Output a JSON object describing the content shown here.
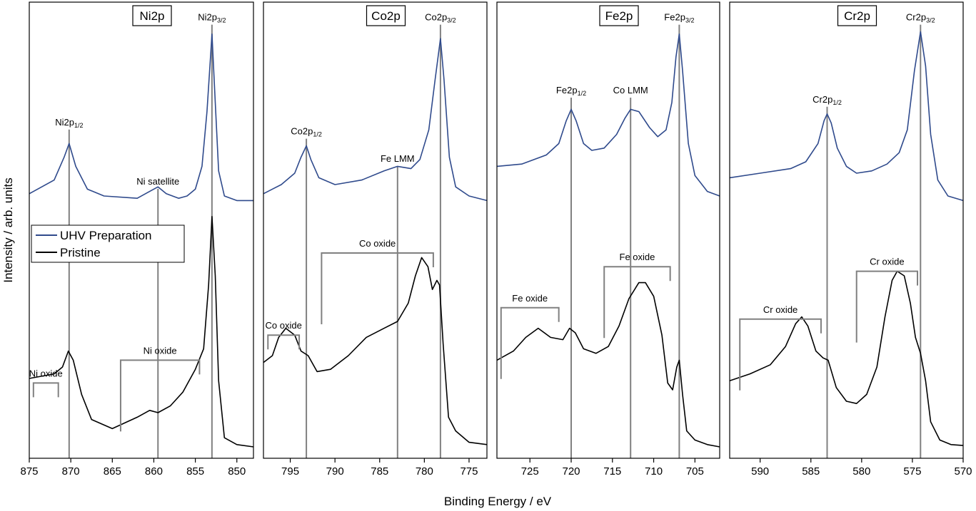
{
  "figure": {
    "xlabel": "Binding Energy / eV",
    "ylabel": "Intensity / arb. units"
  },
  "legend": {
    "placement": "left-middle",
    "entries": [
      {
        "label": "UHV Preparation",
        "color": "#2f4a8c"
      },
      {
        "label": "Pristine",
        "color": "#000000"
      }
    ]
  },
  "colors": {
    "uhv": "#2f4a8c",
    "pristine": "#000000",
    "guide": "#808080"
  },
  "chart_data": [
    {
      "type": "line",
      "title": "Ni2p",
      "xlim": [
        875,
        848
      ],
      "xticks": [
        875,
        870,
        865,
        860,
        855,
        850
      ],
      "peaks": [
        {
          "x": 870.2,
          "label": "Ni2p",
          "sub": "1/2",
          "label_y": 0.73
        },
        {
          "x": 859.5,
          "label": "Ni satellite",
          "sub": "",
          "label_y": 0.6
        },
        {
          "x": 853.0,
          "label": "Ni2p",
          "sub": "3/2",
          "label_y": 0.96
        }
      ],
      "brackets": [
        {
          "x1": 874.5,
          "x2": 871.5,
          "y": 0.165,
          "label": "Ni oxide"
        },
        {
          "x1": 864.0,
          "x2": 854.5,
          "y": 0.215,
          "label": "Ni oxide"
        }
      ],
      "series": [
        {
          "name": "UHV Preparation",
          "points": [
            [
              875,
              0.58
            ],
            [
              872,
              0.61
            ],
            [
              870.8,
              0.66
            ],
            [
              870.2,
              0.69
            ],
            [
              869.4,
              0.64
            ],
            [
              868,
              0.59
            ],
            [
              866,
              0.575
            ],
            [
              862,
              0.57
            ],
            [
              860.5,
              0.585
            ],
            [
              859.5,
              0.595
            ],
            [
              858.5,
              0.58
            ],
            [
              857,
              0.57
            ],
            [
              856,
              0.575
            ],
            [
              855,
              0.59
            ],
            [
              854.2,
              0.64
            ],
            [
              853.6,
              0.76
            ],
            [
              853.0,
              0.93
            ],
            [
              852.6,
              0.78
            ],
            [
              852.2,
              0.63
            ],
            [
              851.5,
              0.575
            ],
            [
              850,
              0.565
            ],
            [
              848,
              0.565
            ]
          ]
        },
        {
          "name": "Pristine",
          "points": [
            [
              875,
              0.175
            ],
            [
              872,
              0.185
            ],
            [
              871,
              0.2
            ],
            [
              870.3,
              0.235
            ],
            [
              869.7,
              0.215
            ],
            [
              868.7,
              0.14
            ],
            [
              867.5,
              0.085
            ],
            [
              865,
              0.065
            ],
            [
              862,
              0.09
            ],
            [
              860.5,
              0.105
            ],
            [
              859.5,
              0.1
            ],
            [
              858,
              0.115
            ],
            [
              856.5,
              0.145
            ],
            [
              855,
              0.195
            ],
            [
              854,
              0.24
            ],
            [
              853.4,
              0.38
            ],
            [
              853.0,
              0.53
            ],
            [
              852.6,
              0.4
            ],
            [
              852.2,
              0.17
            ],
            [
              851.5,
              0.045
            ],
            [
              850,
              0.03
            ],
            [
              848,
              0.025
            ]
          ]
        }
      ]
    },
    {
      "type": "line",
      "title": "Co2p",
      "xlim": [
        798,
        773
      ],
      "xticks": [
        795,
        790,
        785,
        780,
        775
      ],
      "peaks": [
        {
          "x": 793.2,
          "label": "Co2p",
          "sub": "1/2",
          "label_y": 0.71
        },
        {
          "x": 783.0,
          "label": "Fe LMM",
          "sub": "",
          "label_y": 0.65
        },
        {
          "x": 778.2,
          "label": "Co2p",
          "sub": "3/2",
          "label_y": 0.96
        }
      ],
      "brackets": [
        {
          "x1": 797.5,
          "x2": 794.0,
          "y": 0.27,
          "label": "Co oxide"
        },
        {
          "x1": 791.5,
          "x2": 779.0,
          "y": 0.45,
          "label": "Co oxide"
        }
      ],
      "series": [
        {
          "name": "UHV Preparation",
          "points": [
            [
              798,
              0.58
            ],
            [
              796,
              0.6
            ],
            [
              794.5,
              0.625
            ],
            [
              793.8,
              0.66
            ],
            [
              793.2,
              0.685
            ],
            [
              792.7,
              0.655
            ],
            [
              791.8,
              0.615
            ],
            [
              790,
              0.6
            ],
            [
              787,
              0.61
            ],
            [
              784.5,
              0.63
            ],
            [
              783.0,
              0.64
            ],
            [
              781.5,
              0.635
            ],
            [
              780.5,
              0.655
            ],
            [
              779.5,
              0.72
            ],
            [
              778.8,
              0.83
            ],
            [
              778.2,
              0.92
            ],
            [
              777.8,
              0.83
            ],
            [
              777.2,
              0.66
            ],
            [
              776.5,
              0.595
            ],
            [
              775,
              0.575
            ],
            [
              773,
              0.565
            ]
          ]
        },
        {
          "name": "Pristine",
          "points": [
            [
              798,
              0.21
            ],
            [
              797,
              0.225
            ],
            [
              796.3,
              0.265
            ],
            [
              795.5,
              0.285
            ],
            [
              794.5,
              0.27
            ],
            [
              793.8,
              0.235
            ],
            [
              793,
              0.225
            ],
            [
              792,
              0.19
            ],
            [
              790.5,
              0.195
            ],
            [
              788.5,
              0.225
            ],
            [
              786.5,
              0.265
            ],
            [
              784.5,
              0.285
            ],
            [
              783,
              0.3
            ],
            [
              781.8,
              0.34
            ],
            [
              781,
              0.4
            ],
            [
              780.3,
              0.44
            ],
            [
              779.6,
              0.42
            ],
            [
              779.1,
              0.37
            ],
            [
              778.6,
              0.39
            ],
            [
              778.3,
              0.38
            ],
            [
              777.9,
              0.25
            ],
            [
              777.3,
              0.09
            ],
            [
              776.5,
              0.06
            ],
            [
              775,
              0.035
            ],
            [
              773,
              0.03
            ]
          ]
        }
      ]
    },
    {
      "type": "line",
      "title": "Fe2p",
      "xlim": [
        729,
        702
      ],
      "xticks": [
        725,
        720,
        715,
        710,
        705
      ],
      "peaks": [
        {
          "x": 720.0,
          "label": "Fe2p",
          "sub": "1/2",
          "label_y": 0.8
        },
        {
          "x": 712.8,
          "label": "Co LMM",
          "sub": "",
          "label_y": 0.8
        },
        {
          "x": 706.9,
          "label": "Fe2p",
          "sub": "3/2",
          "label_y": 0.96
        }
      ],
      "brackets": [
        {
          "x1": 728.5,
          "x2": 721.5,
          "y": 0.33,
          "label": "Fe oxide"
        },
        {
          "x1": 716.0,
          "x2": 708.0,
          "y": 0.42,
          "label": "Fe oxide"
        }
      ],
      "series": [
        {
          "name": "UHV Preparation",
          "points": [
            [
              729,
              0.64
            ],
            [
              726,
              0.645
            ],
            [
              723,
              0.665
            ],
            [
              721.5,
              0.69
            ],
            [
              720.6,
              0.74
            ],
            [
              720.0,
              0.765
            ],
            [
              719.4,
              0.74
            ],
            [
              718.5,
              0.69
            ],
            [
              717.5,
              0.675
            ],
            [
              716,
              0.68
            ],
            [
              714.5,
              0.71
            ],
            [
              713.5,
              0.745
            ],
            [
              712.8,
              0.765
            ],
            [
              711.8,
              0.76
            ],
            [
              710.5,
              0.725
            ],
            [
              709.5,
              0.705
            ],
            [
              708.5,
              0.72
            ],
            [
              707.8,
              0.78
            ],
            [
              707.3,
              0.88
            ],
            [
              706.9,
              0.93
            ],
            [
              706.5,
              0.85
            ],
            [
              705.8,
              0.69
            ],
            [
              705,
              0.62
            ],
            [
              703.5,
              0.585
            ],
            [
              702,
              0.575
            ]
          ]
        },
        {
          "name": "Pristine",
          "points": [
            [
              729,
              0.215
            ],
            [
              727,
              0.235
            ],
            [
              725.5,
              0.265
            ],
            [
              724,
              0.285
            ],
            [
              722.5,
              0.265
            ],
            [
              721,
              0.26
            ],
            [
              720.2,
              0.285
            ],
            [
              719.5,
              0.275
            ],
            [
              718.5,
              0.24
            ],
            [
              717,
              0.23
            ],
            [
              715.5,
              0.245
            ],
            [
              714.2,
              0.29
            ],
            [
              713,
              0.35
            ],
            [
              711.8,
              0.385
            ],
            [
              711,
              0.385
            ],
            [
              710,
              0.355
            ],
            [
              709,
              0.27
            ],
            [
              708.3,
              0.165
            ],
            [
              707.7,
              0.15
            ],
            [
              707.2,
              0.2
            ],
            [
              706.9,
              0.215
            ],
            [
              706.5,
              0.14
            ],
            [
              706,
              0.06
            ],
            [
              705,
              0.04
            ],
            [
              703.5,
              0.03
            ],
            [
              702,
              0.025
            ]
          ]
        }
      ]
    },
    {
      "type": "line",
      "title": "Cr2p",
      "xlim": [
        593,
        570
      ],
      "xticks": [
        590,
        585,
        580,
        575,
        570
      ],
      "peaks": [
        {
          "x": 583.4,
          "label": "Cr2p",
          "sub": "1/2",
          "label_y": 0.78
        },
        {
          "x": 574.2,
          "label": "Cr2p",
          "sub": "3/2",
          "label_y": 0.96
        }
      ],
      "brackets": [
        {
          "x1": 592.0,
          "x2": 584.0,
          "y": 0.305,
          "label": "Cr oxide"
        },
        {
          "x1": 580.5,
          "x2": 574.5,
          "y": 0.41,
          "label": "Cr oxide"
        }
      ],
      "series": [
        {
          "name": "UHV Preparation",
          "points": [
            [
              593,
              0.615
            ],
            [
              590,
              0.625
            ],
            [
              587,
              0.635
            ],
            [
              585.5,
              0.65
            ],
            [
              584.3,
              0.69
            ],
            [
              583.7,
              0.74
            ],
            [
              583.4,
              0.755
            ],
            [
              583.0,
              0.735
            ],
            [
              582.4,
              0.68
            ],
            [
              581.5,
              0.64
            ],
            [
              580.5,
              0.625
            ],
            [
              579,
              0.63
            ],
            [
              577.5,
              0.645
            ],
            [
              576.3,
              0.67
            ],
            [
              575.5,
              0.72
            ],
            [
              574.8,
              0.85
            ],
            [
              574.2,
              0.935
            ],
            [
              573.7,
              0.86
            ],
            [
              573.2,
              0.71
            ],
            [
              572.5,
              0.61
            ],
            [
              571.5,
              0.575
            ],
            [
              570,
              0.565
            ]
          ]
        },
        {
          "name": "Pristine",
          "points": [
            [
              593,
              0.17
            ],
            [
              591,
              0.185
            ],
            [
              589,
              0.205
            ],
            [
              587.5,
              0.245
            ],
            [
              586.5,
              0.295
            ],
            [
              585.9,
              0.31
            ],
            [
              585.3,
              0.29
            ],
            [
              584.5,
              0.235
            ],
            [
              583.8,
              0.22
            ],
            [
              583.3,
              0.215
            ],
            [
              582.5,
              0.155
            ],
            [
              581.5,
              0.125
            ],
            [
              580.5,
              0.12
            ],
            [
              579.5,
              0.14
            ],
            [
              578.5,
              0.2
            ],
            [
              577.7,
              0.31
            ],
            [
              577.0,
              0.39
            ],
            [
              576.5,
              0.41
            ],
            [
              575.8,
              0.4
            ],
            [
              575.2,
              0.34
            ],
            [
              574.7,
              0.265
            ],
            [
              574.2,
              0.23
            ],
            [
              573.7,
              0.17
            ],
            [
              573.2,
              0.08
            ],
            [
              572.3,
              0.04
            ],
            [
              571.2,
              0.03
            ],
            [
              570,
              0.028
            ]
          ]
        }
      ]
    }
  ]
}
